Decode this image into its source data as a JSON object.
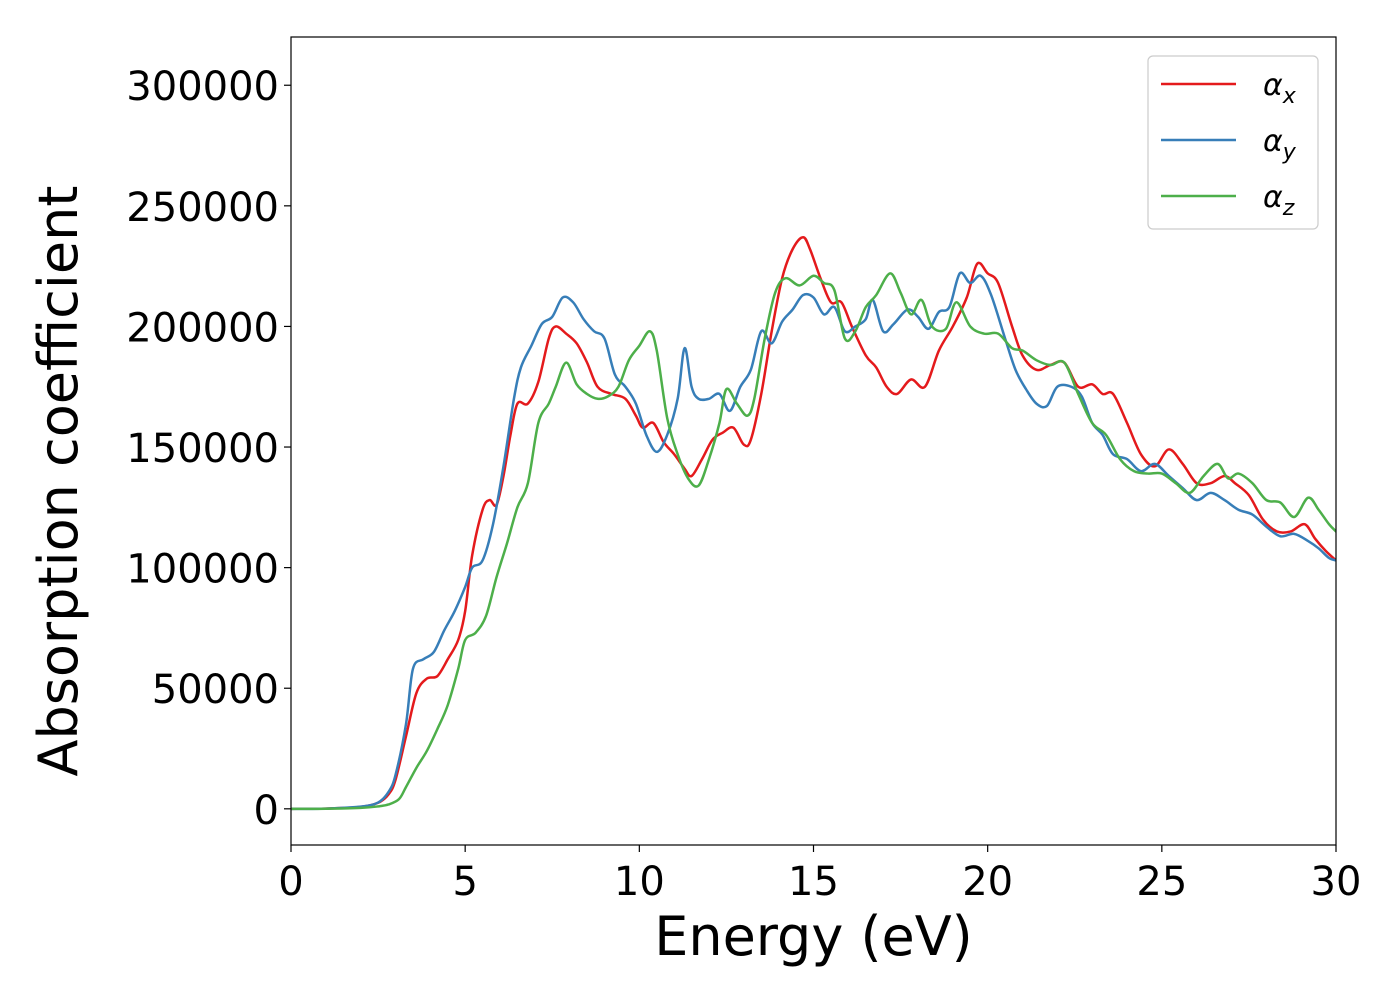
{
  "chart_data": {
    "type": "line",
    "xlabel": "Energy (eV)",
    "ylabel": "Absorption coefficient",
    "xlim": [
      0,
      30
    ],
    "ylim": [
      -15000,
      320000
    ],
    "xticks": [
      0,
      5,
      10,
      15,
      20,
      25,
      30
    ],
    "yticks": [
      0,
      50000,
      100000,
      150000,
      200000,
      250000,
      300000
    ],
    "grid": false,
    "legend_position": "top-right",
    "series": [
      {
        "name": "x",
        "legend_symbol": "α",
        "legend_subscript": "x",
        "color": "#e41a1c",
        "points": [
          [
            0,
            0
          ],
          [
            1,
            100
          ],
          [
            2,
            800
          ],
          [
            2.5,
            2500
          ],
          [
            2.8,
            6000
          ],
          [
            3,
            12000
          ],
          [
            3.3,
            30000
          ],
          [
            3.6,
            48000
          ],
          [
            3.9,
            54000
          ],
          [
            4.2,
            55000
          ],
          [
            4.5,
            62000
          ],
          [
            4.8,
            70000
          ],
          [
            5,
            82000
          ],
          [
            5.2,
            105000
          ],
          [
            5.5,
            124000
          ],
          [
            5.7,
            128000
          ],
          [
            5.9,
            126000
          ],
          [
            6.1,
            138000
          ],
          [
            6.3,
            155000
          ],
          [
            6.5,
            168000
          ],
          [
            6.8,
            168000
          ],
          [
            7.1,
            177000
          ],
          [
            7.4,
            195000
          ],
          [
            7.6,
            200000
          ],
          [
            7.9,
            197000
          ],
          [
            8.2,
            193000
          ],
          [
            8.5,
            185000
          ],
          [
            8.8,
            175000
          ],
          [
            9.2,
            172000
          ],
          [
            9.6,
            170000
          ],
          [
            9.9,
            163000
          ],
          [
            10.1,
            158000
          ],
          [
            10.4,
            160000
          ],
          [
            10.7,
            152000
          ],
          [
            11,
            147000
          ],
          [
            11.3,
            141000
          ],
          [
            11.5,
            138000
          ],
          [
            11.8,
            145000
          ],
          [
            12.1,
            153000
          ],
          [
            12.4,
            156000
          ],
          [
            12.7,
            158000
          ],
          [
            13,
            151000
          ],
          [
            13.2,
            153000
          ],
          [
            13.5,
            172000
          ],
          [
            13.8,
            198000
          ],
          [
            14.1,
            220000
          ],
          [
            14.4,
            232000
          ],
          [
            14.7,
            237000
          ],
          [
            14.9,
            232000
          ],
          [
            15.2,
            220000
          ],
          [
            15.5,
            210000
          ],
          [
            15.8,
            210000
          ],
          [
            16.1,
            200000
          ],
          [
            16.5,
            188000
          ],
          [
            16.8,
            183000
          ],
          [
            17.1,
            175000
          ],
          [
            17.4,
            172000
          ],
          [
            17.8,
            178000
          ],
          [
            18.2,
            175000
          ],
          [
            18.6,
            190000
          ],
          [
            19,
            200000
          ],
          [
            19.4,
            212000
          ],
          [
            19.7,
            226000
          ],
          [
            20,
            222000
          ],
          [
            20.3,
            218000
          ],
          [
            20.7,
            200000
          ],
          [
            21,
            188000
          ],
          [
            21.4,
            182000
          ],
          [
            21.8,
            184000
          ],
          [
            22.2,
            185000
          ],
          [
            22.6,
            175000
          ],
          [
            23,
            176000
          ],
          [
            23.3,
            172000
          ],
          [
            23.6,
            172000
          ],
          [
            24,
            160000
          ],
          [
            24.4,
            147000
          ],
          [
            24.8,
            142000
          ],
          [
            25.2,
            149000
          ],
          [
            25.6,
            143000
          ],
          [
            26,
            135000
          ],
          [
            26.4,
            135000
          ],
          [
            26.8,
            138000
          ],
          [
            27.1,
            135000
          ],
          [
            27.5,
            130000
          ],
          [
            27.9,
            120000
          ],
          [
            28.3,
            115000
          ],
          [
            28.7,
            115000
          ],
          [
            29.1,
            118000
          ],
          [
            29.4,
            112000
          ],
          [
            29.7,
            107000
          ],
          [
            30,
            103000
          ]
        ]
      },
      {
        "name": "y",
        "legend_symbol": "α",
        "legend_subscript": "y",
        "color": "#377eb8",
        "points": [
          [
            0,
            0
          ],
          [
            1,
            100
          ],
          [
            2,
            900
          ],
          [
            2.5,
            2600
          ],
          [
            2.8,
            7000
          ],
          [
            3,
            14000
          ],
          [
            3.3,
            35000
          ],
          [
            3.5,
            58000
          ],
          [
            3.8,
            62000
          ],
          [
            4.1,
            65000
          ],
          [
            4.4,
            74000
          ],
          [
            4.7,
            82000
          ],
          [
            5,
            92000
          ],
          [
            5.2,
            100000
          ],
          [
            5.5,
            103000
          ],
          [
            5.8,
            118000
          ],
          [
            6.1,
            142000
          ],
          [
            6.4,
            170000
          ],
          [
            6.6,
            183000
          ],
          [
            6.9,
            192000
          ],
          [
            7.2,
            201000
          ],
          [
            7.5,
            204000
          ],
          [
            7.8,
            212000
          ],
          [
            8.1,
            210000
          ],
          [
            8.4,
            203000
          ],
          [
            8.7,
            198000
          ],
          [
            9,
            195000
          ],
          [
            9.3,
            180000
          ],
          [
            9.6,
            175000
          ],
          [
            9.9,
            168000
          ],
          [
            10.2,
            155000
          ],
          [
            10.5,
            148000
          ],
          [
            10.8,
            155000
          ],
          [
            11.1,
            170000
          ],
          [
            11.3,
            191000
          ],
          [
            11.5,
            175000
          ],
          [
            11.7,
            170000
          ],
          [
            12,
            170000
          ],
          [
            12.3,
            172000
          ],
          [
            12.6,
            165000
          ],
          [
            12.9,
            175000
          ],
          [
            13.2,
            182000
          ],
          [
            13.5,
            198000
          ],
          [
            13.8,
            193000
          ],
          [
            14.1,
            202000
          ],
          [
            14.4,
            207000
          ],
          [
            14.7,
            213000
          ],
          [
            15,
            212000
          ],
          [
            15.3,
            205000
          ],
          [
            15.6,
            208000
          ],
          [
            15.9,
            198000
          ],
          [
            16.2,
            200000
          ],
          [
            16.5,
            203000
          ],
          [
            16.7,
            211000
          ],
          [
            17,
            198000
          ],
          [
            17.3,
            201000
          ],
          [
            17.7,
            207000
          ],
          [
            18,
            204000
          ],
          [
            18.3,
            199000
          ],
          [
            18.6,
            206000
          ],
          [
            18.9,
            208000
          ],
          [
            19.2,
            222000
          ],
          [
            19.5,
            218000
          ],
          [
            19.8,
            221000
          ],
          [
            20.1,
            213000
          ],
          [
            20.5,
            195000
          ],
          [
            20.8,
            182000
          ],
          [
            21.1,
            174000
          ],
          [
            21.4,
            168000
          ],
          [
            21.7,
            167000
          ],
          [
            22,
            175000
          ],
          [
            22.4,
            175000
          ],
          [
            22.7,
            171000
          ],
          [
            23,
            160000
          ],
          [
            23.3,
            155000
          ],
          [
            23.6,
            147000
          ],
          [
            24,
            145000
          ],
          [
            24.4,
            140000
          ],
          [
            24.8,
            143000
          ],
          [
            25.2,
            138000
          ],
          [
            25.6,
            133000
          ],
          [
            26,
            128000
          ],
          [
            26.4,
            131000
          ],
          [
            26.8,
            128000
          ],
          [
            27.2,
            124000
          ],
          [
            27.6,
            122000
          ],
          [
            28,
            117000
          ],
          [
            28.4,
            113000
          ],
          [
            28.8,
            114000
          ],
          [
            29.2,
            111000
          ],
          [
            29.5,
            108000
          ],
          [
            29.8,
            104000
          ],
          [
            30,
            103000
          ]
        ]
      },
      {
        "name": "z",
        "legend_symbol": "α",
        "legend_subscript": "z",
        "color": "#4daf4a",
        "points": [
          [
            0,
            0
          ],
          [
            1,
            50
          ],
          [
            2,
            400
          ],
          [
            2.5,
            1000
          ],
          [
            2.8,
            1800
          ],
          [
            3.1,
            4000
          ],
          [
            3.3,
            9000
          ],
          [
            3.6,
            17000
          ],
          [
            3.9,
            24000
          ],
          [
            4.2,
            33000
          ],
          [
            4.5,
            43000
          ],
          [
            4.8,
            58000
          ],
          [
            5,
            70000
          ],
          [
            5.3,
            73000
          ],
          [
            5.6,
            80000
          ],
          [
            5.9,
            96000
          ],
          [
            6.2,
            110000
          ],
          [
            6.5,
            125000
          ],
          [
            6.8,
            135000
          ],
          [
            7.1,
            160000
          ],
          [
            7.4,
            168000
          ],
          [
            7.6,
            175000
          ],
          [
            7.9,
            185000
          ],
          [
            8.2,
            176000
          ],
          [
            8.5,
            172000
          ],
          [
            8.8,
            170000
          ],
          [
            9.1,
            171000
          ],
          [
            9.4,
            175000
          ],
          [
            9.7,
            186000
          ],
          [
            10,
            192000
          ],
          [
            10.3,
            198000
          ],
          [
            10.5,
            190000
          ],
          [
            10.8,
            162000
          ],
          [
            11.1,
            147000
          ],
          [
            11.4,
            137000
          ],
          [
            11.7,
            134000
          ],
          [
            12,
            145000
          ],
          [
            12.3,
            160000
          ],
          [
            12.5,
            174000
          ],
          [
            12.8,
            168000
          ],
          [
            13.1,
            163000
          ],
          [
            13.3,
            170000
          ],
          [
            13.6,
            195000
          ],
          [
            13.9,
            214000
          ],
          [
            14.2,
            220000
          ],
          [
            14.6,
            217000
          ],
          [
            15,
            221000
          ],
          [
            15.3,
            218000
          ],
          [
            15.6,
            215000
          ],
          [
            15.9,
            195000
          ],
          [
            16.2,
            198000
          ],
          [
            16.5,
            208000
          ],
          [
            16.8,
            213000
          ],
          [
            17.2,
            222000
          ],
          [
            17.5,
            214000
          ],
          [
            17.8,
            205000
          ],
          [
            18.1,
            211000
          ],
          [
            18.4,
            200000
          ],
          [
            18.8,
            199000
          ],
          [
            19.1,
            210000
          ],
          [
            19.5,
            200000
          ],
          [
            19.9,
            197000
          ],
          [
            20.3,
            197000
          ],
          [
            20.7,
            191000
          ],
          [
            21,
            190000
          ],
          [
            21.4,
            186000
          ],
          [
            21.8,
            184000
          ],
          [
            22.2,
            185000
          ],
          [
            22.6,
            172000
          ],
          [
            23,
            160000
          ],
          [
            23.4,
            155000
          ],
          [
            23.8,
            145000
          ],
          [
            24.2,
            140000
          ],
          [
            24.6,
            139000
          ],
          [
            25,
            139000
          ],
          [
            25.4,
            135000
          ],
          [
            25.8,
            131000
          ],
          [
            26.2,
            138000
          ],
          [
            26.6,
            143000
          ],
          [
            26.9,
            137000
          ],
          [
            27.2,
            139000
          ],
          [
            27.6,
            135000
          ],
          [
            28,
            128000
          ],
          [
            28.4,
            127000
          ],
          [
            28.8,
            121000
          ],
          [
            29.2,
            129000
          ],
          [
            29.5,
            124000
          ],
          [
            29.8,
            118000
          ],
          [
            30,
            115000
          ]
        ]
      }
    ]
  }
}
